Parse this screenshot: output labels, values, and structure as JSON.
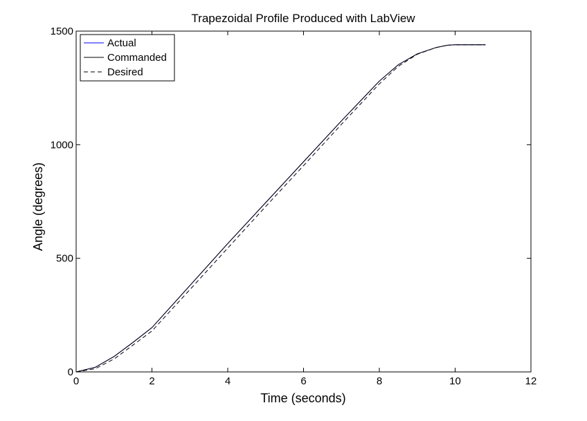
{
  "chart_data": {
    "type": "line",
    "title": "Trapezoidal Profile Produced with LabView",
    "xlabel": "Time (seconds)",
    "ylabel": "Angle (degrees)",
    "xlim": [
      0,
      12
    ],
    "ylim": [
      0,
      1500
    ],
    "xticks": [
      0,
      2,
      4,
      6,
      8,
      10,
      12
    ],
    "yticks": [
      0,
      500,
      1000,
      1500
    ],
    "grid": false,
    "legend_position": "top-left",
    "series": [
      {
        "name": "Actual",
        "color": "#0000ff",
        "dash": "solid",
        "x": [
          0,
          0.5,
          1,
          1.5,
          2,
          3,
          4,
          5,
          6,
          7,
          8,
          8.5,
          9,
          9.5,
          9.8,
          10,
          10.8
        ],
        "y": [
          0,
          20,
          68,
          130,
          195,
          380,
          565,
          745,
          925,
          1105,
          1280,
          1352,
          1400,
          1428,
          1438,
          1440,
          1440
        ]
      },
      {
        "name": "Commanded",
        "color": "#000000",
        "dash": "solid",
        "x": [
          0,
          0.5,
          1,
          1.5,
          2,
          3,
          4,
          5,
          6,
          7,
          8,
          8.5,
          9,
          9.5,
          9.8,
          10,
          10.8
        ],
        "y": [
          0,
          20,
          68,
          130,
          195,
          380,
          565,
          745,
          925,
          1105,
          1280,
          1352,
          1400,
          1428,
          1438,
          1440,
          1440
        ]
      },
      {
        "name": "Desired",
        "color": "#000000",
        "dash": "dashed",
        "x": [
          0,
          0.5,
          1,
          1.5,
          2,
          3,
          4,
          5,
          6,
          7,
          8,
          8.5,
          9,
          9.5,
          9.8,
          10,
          10.8
        ],
        "y": [
          0,
          14,
          57,
          118,
          180,
          362,
          545,
          728,
          908,
          1090,
          1268,
          1345,
          1398,
          1428,
          1438,
          1440,
          1440
        ]
      }
    ]
  }
}
